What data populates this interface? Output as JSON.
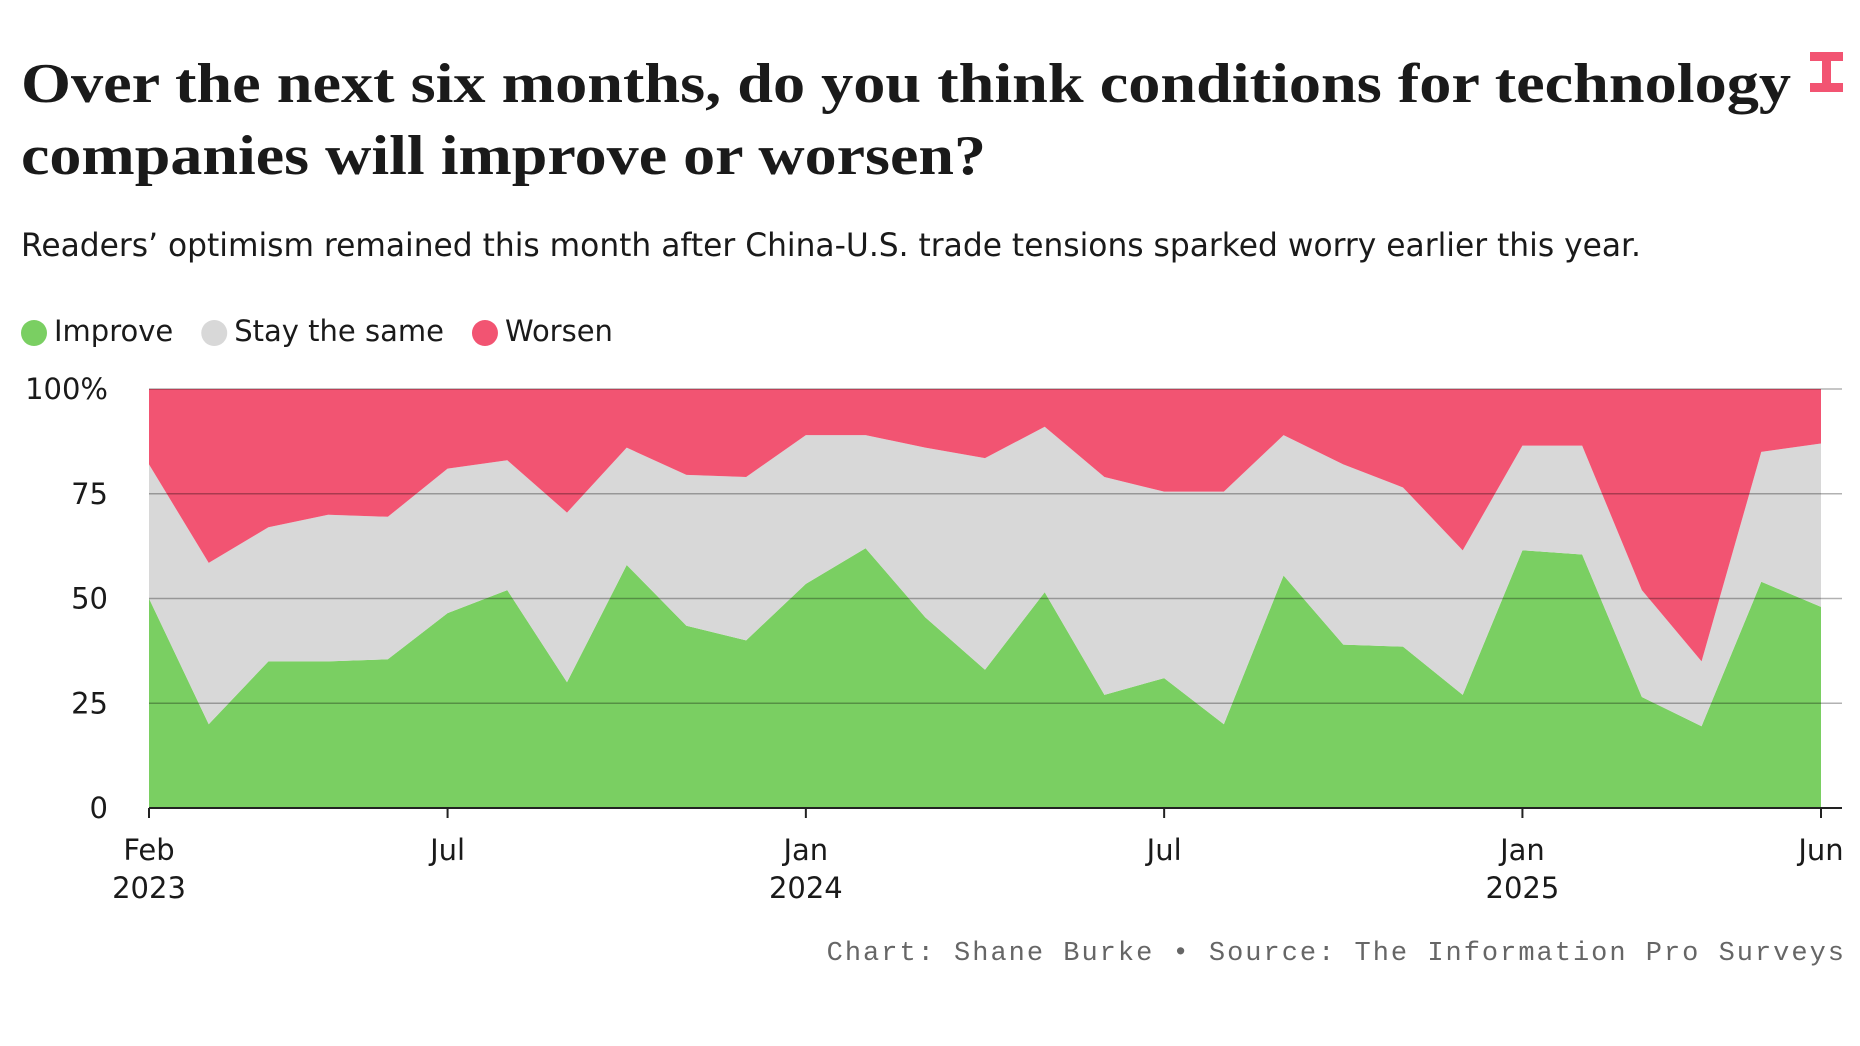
{
  "chart_data": {
    "type": "stacked-area",
    "title": [
      "Over the next six months, do you think conditions for technology",
      "companies will improve or worsen?"
    ],
    "subtitle": "Readers’ optimism remained this month after China-U.S. trade tensions sparked worry earlier this year.",
    "footer": "Chart: Shane Burke • Source: The Information Pro Surveys",
    "x": [
      "2023-02",
      "2023-03",
      "2023-04",
      "2023-05",
      "2023-06",
      "2023-07",
      "2023-08",
      "2023-09",
      "2023-10",
      "2023-11",
      "2023-12",
      "2024-01",
      "2024-02",
      "2024-03",
      "2024-04",
      "2024-05",
      "2024-06",
      "2024-07",
      "2024-08",
      "2024-09",
      "2024-10",
      "2024-11",
      "2024-12",
      "2025-01",
      "2025-02",
      "2025-03",
      "2025-04",
      "2025-05",
      "2025-06"
    ],
    "series": [
      {
        "name": "Improve",
        "color": "#7acf62",
        "values": [
          50,
          20,
          35,
          35,
          35.5,
          46.5,
          52,
          30,
          58,
          43.5,
          40,
          53.5,
          62,
          45.5,
          33,
          51.5,
          27,
          31,
          20,
          55.5,
          39,
          38.5,
          27,
          61.5,
          60.5,
          26.5,
          19.5,
          54,
          48
        ]
      },
      {
        "name": "Stay the same",
        "color": "#d8d8d8",
        "values": [
          32,
          38.5,
          32,
          35,
          34,
          34.5,
          31,
          40.5,
          28,
          36,
          39,
          35.5,
          27,
          40.5,
          50.5,
          39.5,
          52,
          44.5,
          55.5,
          33.5,
          43,
          38,
          34.5,
          25,
          26,
          25.5,
          15.5,
          31,
          39
        ]
      },
      {
        "name": "Worsen",
        "color": "#f25472",
        "values": [
          18,
          41.5,
          33,
          30,
          30.5,
          19,
          17,
          29.5,
          14,
          20.5,
          21,
          11,
          11,
          14,
          16.5,
          9,
          21,
          24.5,
          24.5,
          11,
          18,
          23.5,
          38.5,
          13.5,
          13.5,
          48,
          65,
          15,
          13
        ]
      }
    ],
    "ylim": [
      0,
      100
    ],
    "yticks": [
      0,
      25,
      50,
      75,
      {
        "value": 100,
        "label": "100%"
      }
    ],
    "xticks": [
      {
        "value": "2023-02",
        "label": [
          "Feb",
          "2023"
        ]
      },
      {
        "value": "2023-07",
        "label": [
          "Jul"
        ]
      },
      {
        "value": "2024-01",
        "label": [
          "Jan",
          "2024"
        ]
      },
      {
        "value": "2024-07",
        "label": [
          "Jul"
        ]
      },
      {
        "value": "2025-01",
        "label": [
          "Jan",
          "2025"
        ]
      },
      {
        "value": "2025-06",
        "label": [
          "Jun"
        ]
      }
    ],
    "grid": true,
    "legend": "top-left"
  }
}
